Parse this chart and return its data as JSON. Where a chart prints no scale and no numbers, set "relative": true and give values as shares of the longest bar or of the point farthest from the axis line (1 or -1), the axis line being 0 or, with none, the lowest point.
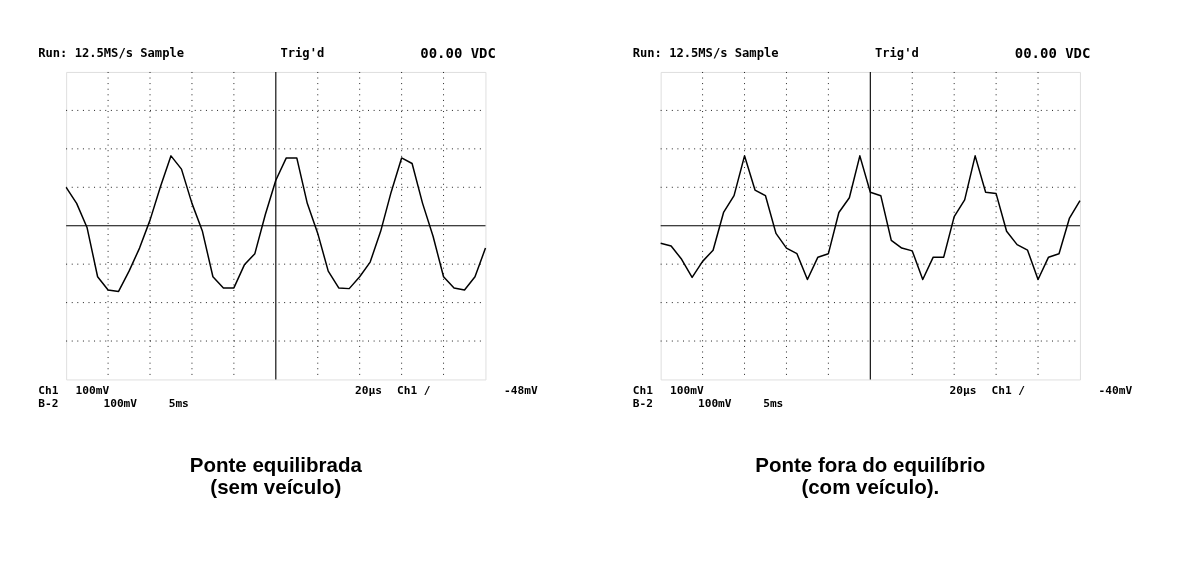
{
  "chart_data": [
    {
      "type": "line",
      "title": "Ponte equilibrada\n(sem veículo)",
      "relative": true,
      "grid": true,
      "line_style": "solid",
      "annotations": [
        "Run: 12.5MS/s Sample",
        "Trig'd",
        "00.00 VDC",
        "Ch1",
        "100mV",
        "20µs",
        "Ch1 /",
        "-48mV",
        "B-2",
        "100mV",
        "5ms"
      ],
      "categories": [
        null,
        null,
        null,
        null,
        null,
        null,
        null,
        null,
        null,
        null,
        null,
        null,
        null,
        null,
        null,
        null,
        null,
        null,
        null,
        null,
        null,
        null,
        null,
        null,
        null,
        null,
        null,
        null,
        null,
        null,
        null,
        null,
        null,
        null,
        null,
        null,
        null,
        null,
        null,
        null,
        null
      ],
      "series": [
        {
          "color": "#000000",
          "values": [
            0.55,
            0.32,
            -0.03,
            -0.73,
            -0.92,
            -0.94,
            -0.65,
            -0.32,
            0.08,
            0.56,
            1.0,
            0.81,
            0.32,
            -0.08,
            -0.73,
            -0.89,
            -0.89,
            -0.56,
            -0.4,
            0.16,
            0.65,
            0.97,
            0.97,
            0.32,
            -0.11,
            -0.65,
            -0.89,
            -0.9,
            -0.73,
            -0.52,
            -0.08,
            0.48,
            0.97,
            0.89,
            0.32,
            -0.15,
            -0.73,
            -0.89,
            -0.92,
            -0.73,
            -0.32
          ]
        }
      ]
    },
    {
      "type": "line",
      "title": "Ponte fora do equilíbrio\n(com veículo).",
      "relative": true,
      "grid": true,
      "line_style": "solid",
      "annotations": [
        "Run: 12.5MS/s Sample",
        "Trig'd",
        "00.00 VDC",
        "Ch1",
        "100mV",
        "20µs",
        "Ch1 /",
        "-40mV",
        "B-2",
        "100mV",
        "5ms"
      ],
      "categories": [
        null,
        null,
        null,
        null,
        null,
        null,
        null,
        null,
        null,
        null,
        null,
        null,
        null,
        null,
        null,
        null,
        null,
        null,
        null,
        null,
        null,
        null,
        null,
        null,
        null,
        null,
        null,
        null,
        null,
        null,
        null,
        null,
        null,
        null,
        null,
        null,
        null,
        null,
        null,
        null,
        null
      ],
      "series": [
        {
          "color": "#000000",
          "values": [
            -0.25,
            -0.29,
            -0.48,
            -0.74,
            -0.51,
            -0.35,
            0.19,
            0.43,
            1.0,
            0.51,
            0.43,
            -0.11,
            -0.32,
            -0.4,
            -0.77,
            -0.45,
            -0.4,
            0.19,
            0.4,
            1.0,
            0.48,
            0.43,
            -0.21,
            -0.32,
            -0.36,
            -0.77,
            -0.45,
            -0.45,
            0.13,
            0.37,
            1.0,
            0.48,
            0.46,
            -0.08,
            -0.27,
            -0.35,
            -0.77,
            -0.45,
            -0.4,
            0.11,
            0.36
          ]
        }
      ]
    }
  ]
}
